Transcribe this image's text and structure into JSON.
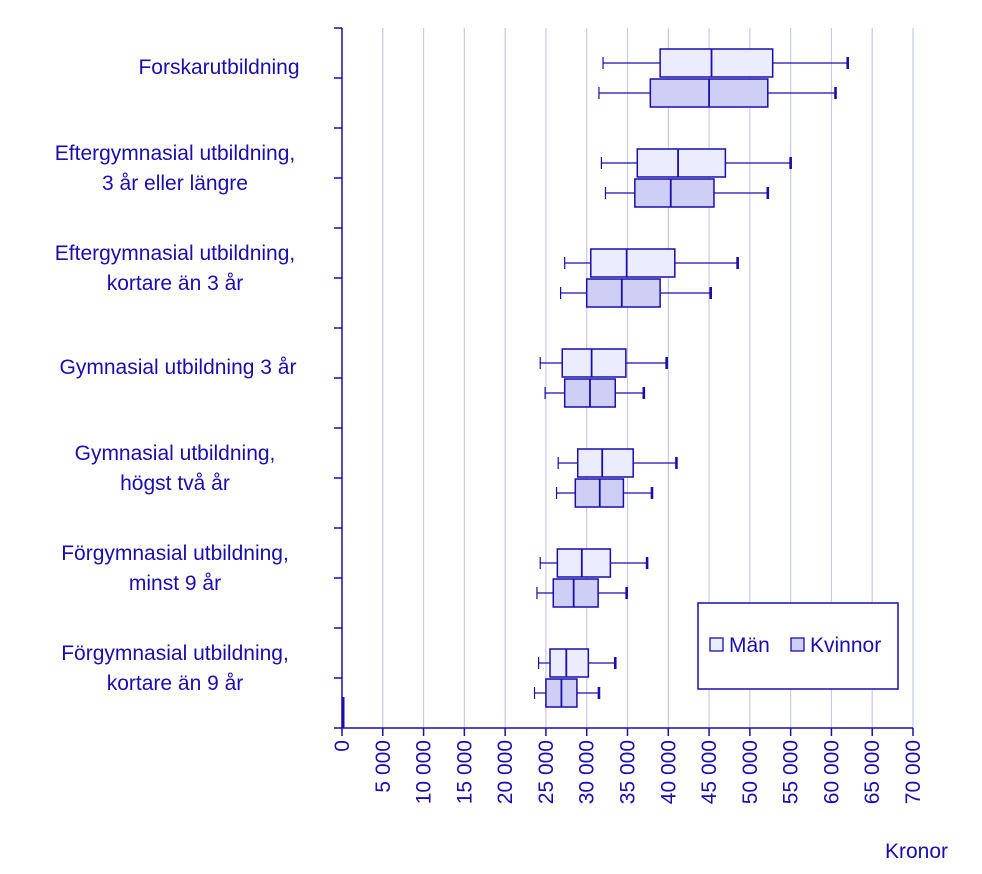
{
  "chart_data": {
    "type": "boxplot",
    "orientation": "horizontal",
    "xlabel": "Kronor",
    "xlim": [
      0,
      70000
    ],
    "xticks": [
      0,
      5000,
      10000,
      15000,
      20000,
      25000,
      30000,
      35000,
      40000,
      45000,
      50000,
      55000,
      60000,
      65000,
      70000
    ],
    "xtick_labels": [
      "0",
      "5 000",
      "10 000",
      "15 000",
      "20 000",
      "25 000",
      "30 000",
      "35 000",
      "40 000",
      "45 000",
      "50 000",
      "55 000",
      "60 000",
      "65 000",
      "70 000"
    ],
    "grid": "vertical",
    "legend_position": "bottom-right",
    "series": [
      {
        "name": "Män",
        "fill": "#ececff"
      },
      {
        "name": "Kvinnor",
        "fill": "#cfcff5"
      }
    ],
    "categories": [
      {
        "lines": [
          "Forskarutbildning"
        ],
        "men": {
          "min": 32000,
          "q1": 39000,
          "median": 45300,
          "q3": 52800,
          "max": 62000
        },
        "women": {
          "min": 31500,
          "q1": 37800,
          "median": 45000,
          "q3": 52200,
          "max": 60500
        }
      },
      {
        "lines": [
          "Eftergymnasial utbildning,",
          "3 år eller längre"
        ],
        "men": {
          "min": 31800,
          "q1": 36200,
          "median": 41200,
          "q3": 47000,
          "max": 55000
        },
        "women": {
          "min": 32300,
          "q1": 35900,
          "median": 40300,
          "q3": 45600,
          "max": 52200
        }
      },
      {
        "lines": [
          "Eftergymnasial utbildning,",
          "kortare än 3 år"
        ],
        "men": {
          "min": 27300,
          "q1": 30500,
          "median": 34900,
          "q3": 40800,
          "max": 48500
        },
        "women": {
          "min": 26800,
          "q1": 30000,
          "median": 34300,
          "q3": 39000,
          "max": 45200
        }
      },
      {
        "lines": [
          "Gymnasial utbildning 3 år"
        ],
        "men": {
          "min": 24300,
          "q1": 27000,
          "median": 30600,
          "q3": 34800,
          "max": 39800
        },
        "women": {
          "min": 24900,
          "q1": 27300,
          "median": 30400,
          "q3": 33500,
          "max": 37000
        }
      },
      {
        "lines": [
          "Gymnasial utbildning,",
          "högst två år"
        ],
        "men": {
          "min": 26500,
          "q1": 28900,
          "median": 31900,
          "q3": 35700,
          "max": 41000
        },
        "women": {
          "min": 26300,
          "q1": 28600,
          "median": 31600,
          "q3": 34500,
          "max": 38000
        }
      },
      {
        "lines": [
          "Förgymnasial utbildning,",
          "minst 9 år"
        ],
        "men": {
          "min": 24300,
          "q1": 26400,
          "median": 29400,
          "q3": 32900,
          "max": 37400
        },
        "women": {
          "min": 23900,
          "q1": 25900,
          "median": 28400,
          "q3": 31400,
          "max": 34900
        }
      },
      {
        "lines": [
          "Förgymnasial utbildning,",
          "kortare än 9 år"
        ],
        "men": {
          "min": 24100,
          "q1": 25500,
          "median": 27500,
          "q3": 30200,
          "max": 33500
        },
        "women": {
          "min": 23600,
          "q1": 25000,
          "median": 26900,
          "q3": 28800,
          "max": 31500
        }
      }
    ]
  }
}
